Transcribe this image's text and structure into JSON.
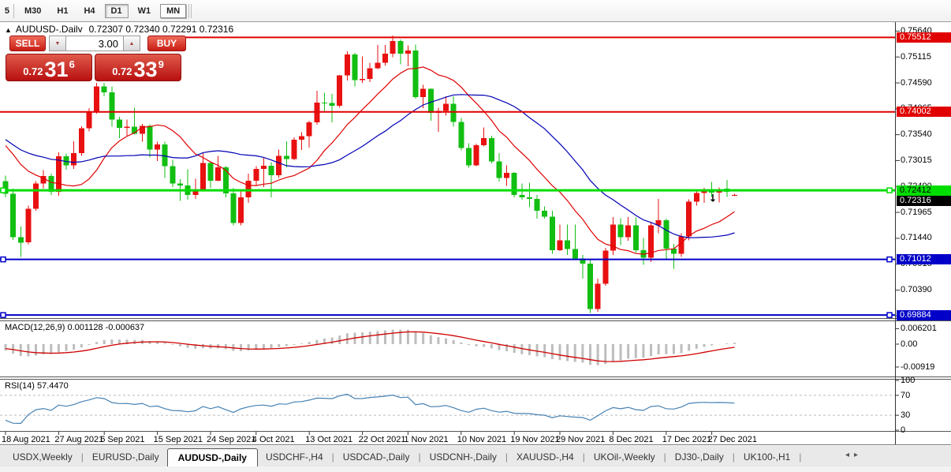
{
  "toolbar": {
    "partial_label": "5",
    "periods": [
      {
        "label": "M30",
        "style": "flat"
      },
      {
        "label": "H1",
        "style": "flat"
      },
      {
        "label": "H4",
        "style": "flat"
      },
      {
        "label": "D1",
        "style": "pressed"
      },
      {
        "label": "W1",
        "style": "flat"
      },
      {
        "label": "MN",
        "style": "raised"
      }
    ],
    "active_period": "D1"
  },
  "chart_header": {
    "collapse_icon": "▲",
    "symbol": "AUDUSD-,Daily",
    "ohlc_text": "0.72307 0.72340 0.72291 0.72316"
  },
  "trade_panel": {
    "sell_label": "SELL",
    "buy_label": "BUY",
    "volume": "3.00",
    "spinner_down": "▼",
    "spinner_up": "▲",
    "sell_price": {
      "prefix": "0.72",
      "main": "31",
      "sup": "6"
    },
    "buy_price": {
      "prefix": "0.72",
      "main": "33",
      "sup": "9"
    }
  },
  "indicators": {
    "macd": {
      "title": "MACD(12,26,9)",
      "value_main": "0.001128",
      "value_signal": "-0.000637"
    },
    "rsi": {
      "title": "RSI(14)",
      "value": "57.4470"
    }
  },
  "tabs": {
    "items": [
      "USDX,Weekly",
      "EURUSD-,Daily",
      "AUDUSD-,Daily",
      "USDCHF-,H4",
      "USDCAD-,Daily",
      "USDCNH-,Daily",
      "XAUUSD-,H4",
      "UKOil-,Weekly",
      "DJ30-,Daily",
      "UK100-,H1"
    ],
    "active": "AUDUSD-,Daily",
    "scroll_left": "◂",
    "scroll_right": "▸"
  },
  "chart_data": {
    "type": "candlestick",
    "symbol": "AUDUSD",
    "timeframe": "Daily",
    "bull_color": "#E81010",
    "bear_color": "#12BE12",
    "price_axis_ticks": [
      {
        "value": 0.7564,
        "text": "0.75640"
      },
      {
        "value": 0.75115,
        "text": "0.75115"
      },
      {
        "value": 0.7459,
        "text": "0.74590"
      },
      {
        "value": 0.74065,
        "text": "0.74065"
      },
      {
        "value": 0.7354,
        "text": "0.73540"
      },
      {
        "value": 0.73015,
        "text": "0.73015"
      },
      {
        "value": 0.7249,
        "text": "0.72490"
      },
      {
        "value": 0.71965,
        "text": "0.71965"
      },
      {
        "value": 0.7144,
        "text": "0.71440"
      },
      {
        "value": 0.70915,
        "text": "0.70915"
      },
      {
        "value": 0.7039,
        "text": "0.70390"
      },
      {
        "value": 0.69865,
        "text": "0.69865"
      }
    ],
    "h_lines": [
      {
        "price": 0.75512,
        "text": "0.75512",
        "color": "#E00000",
        "width": 2,
        "selected": false,
        "badge_fg": "#ffffff"
      },
      {
        "price": 0.74002,
        "text": "0.74002",
        "color": "#E00000",
        "width": 2,
        "selected": false,
        "badge_fg": "#ffffff"
      },
      {
        "price": 0.72412,
        "text": "0.72412",
        "color": "#00DD00",
        "width": 3,
        "selected": true,
        "badge_fg": "#000000"
      },
      {
        "price": 0.71012,
        "text": "0.71012",
        "color": "#0000C8",
        "width": 2,
        "selected": true,
        "badge_fg": "#ffffff"
      },
      {
        "price": 0.69884,
        "text": "0.69884",
        "color": "#0000C8",
        "width": 2,
        "selected": true,
        "badge_fg": "#ffffff"
      }
    ],
    "current_price": {
      "value": 0.72316,
      "text": "0.72316",
      "badge_bg": "#000000",
      "badge_fg": "#ffffff"
    },
    "date_labels": [
      {
        "i": 0,
        "text": "18 Aug 2021"
      },
      {
        "i": 7,
        "text": "27 Aug 2021"
      },
      {
        "i": 13,
        "text": "6 Sep 2021"
      },
      {
        "i": 20,
        "text": "15 Sep 2021"
      },
      {
        "i": 27,
        "text": "24 Sep 2021"
      },
      {
        "i": 33,
        "text": "4 Oct 2021"
      },
      {
        "i": 40,
        "text": "13 Oct 2021"
      },
      {
        "i": 47,
        "text": "22 Oct 2021"
      },
      {
        "i": 53,
        "text": "1 Nov 2021"
      },
      {
        "i": 60,
        "text": "10 Nov 2021"
      },
      {
        "i": 67,
        "text": "19 Nov 2021"
      },
      {
        "i": 73,
        "text": "29 Nov 2021"
      },
      {
        "i": 80,
        "text": "8 Dec 2021"
      },
      {
        "i": 87,
        "text": "17 Dec 2021"
      },
      {
        "i": 93,
        "text": "27 Dec 2021"
      }
    ],
    "start_date": "18 Aug 2021",
    "pre_history_closes": [
      0.7415,
      0.74,
      0.7395,
      0.7405,
      0.738,
      0.736,
      0.7372,
      0.7355,
      0.734,
      0.7348,
      0.7365,
      0.7352,
      0.7338,
      0.7322,
      0.7343,
      0.7358,
      0.7379,
      0.7368,
      0.7352,
      0.7345,
      0.734,
      0.7338,
      0.7336,
      0.7332,
      0.733,
      0.727
    ],
    "ohlc": [
      [
        0.726,
        0.7271,
        0.7227,
        0.7234
      ],
      [
        0.7234,
        0.7245,
        0.7141,
        0.7146
      ],
      [
        0.7146,
        0.7168,
        0.7106,
        0.7135
      ],
      [
        0.7136,
        0.721,
        0.7132,
        0.7204
      ],
      [
        0.7204,
        0.726,
        0.72,
        0.7255
      ],
      [
        0.7255,
        0.7282,
        0.7245,
        0.727
      ],
      [
        0.727,
        0.7275,
        0.7232,
        0.7238
      ],
      [
        0.7238,
        0.7318,
        0.723,
        0.731
      ],
      [
        0.731,
        0.7316,
        0.7283,
        0.7292
      ],
      [
        0.7292,
        0.7341,
        0.7285,
        0.7317
      ],
      [
        0.7317,
        0.7371,
        0.7311,
        0.7367
      ],
      [
        0.7367,
        0.7408,
        0.7361,
        0.7401
      ],
      [
        0.7401,
        0.7477,
        0.7397,
        0.7452
      ],
      [
        0.7452,
        0.7462,
        0.7432,
        0.744
      ],
      [
        0.744,
        0.7452,
        0.737,
        0.7385
      ],
      [
        0.7385,
        0.739,
        0.7347,
        0.7368
      ],
      [
        0.7368,
        0.7385,
        0.7352,
        0.737
      ],
      [
        0.737,
        0.7409,
        0.7354,
        0.7356
      ],
      [
        0.7356,
        0.7376,
        0.734,
        0.7372
      ],
      [
        0.7372,
        0.7375,
        0.7308,
        0.7324
      ],
      [
        0.7324,
        0.734,
        0.7301,
        0.7334
      ],
      [
        0.7334,
        0.734,
        0.7266,
        0.729
      ],
      [
        0.729,
        0.7303,
        0.7248,
        0.7255
      ],
      [
        0.7255,
        0.7264,
        0.722,
        0.7251
      ],
      [
        0.7251,
        0.7284,
        0.7222,
        0.7232
      ],
      [
        0.7232,
        0.7265,
        0.7224,
        0.7243
      ],
      [
        0.7243,
        0.7317,
        0.7241,
        0.7297
      ],
      [
        0.7297,
        0.7299,
        0.7246,
        0.7261
      ],
      [
        0.7261,
        0.7311,
        0.726,
        0.7288
      ],
      [
        0.7288,
        0.729,
        0.7227,
        0.7235
      ],
      [
        0.7235,
        0.7246,
        0.717,
        0.7175
      ],
      [
        0.7175,
        0.724,
        0.717,
        0.7227
      ],
      [
        0.7227,
        0.7275,
        0.7216,
        0.7261
      ],
      [
        0.7261,
        0.729,
        0.725,
        0.7285
      ],
      [
        0.7285,
        0.7307,
        0.7248,
        0.7291
      ],
      [
        0.7291,
        0.7298,
        0.7227,
        0.7272
      ],
      [
        0.7272,
        0.7324,
        0.7266,
        0.7311
      ],
      [
        0.7311,
        0.7341,
        0.7288,
        0.7305
      ],
      [
        0.7305,
        0.7349,
        0.7302,
        0.7344
      ],
      [
        0.7344,
        0.7359,
        0.7323,
        0.7351
      ],
      [
        0.7351,
        0.7382,
        0.7328,
        0.7379
      ],
      [
        0.7379,
        0.7443,
        0.7374,
        0.7419
      ],
      [
        0.7419,
        0.7439,
        0.7402,
        0.7418
      ],
      [
        0.7418,
        0.7437,
        0.7379,
        0.7413
      ],
      [
        0.7413,
        0.7475,
        0.7409,
        0.7474
      ],
      [
        0.7474,
        0.7523,
        0.7464,
        0.7517
      ],
      [
        0.7517,
        0.752,
        0.7452,
        0.7465
      ],
      [
        0.7465,
        0.7513,
        0.7459,
        0.7467
      ],
      [
        0.7467,
        0.75,
        0.7461,
        0.7489
      ],
      [
        0.7489,
        0.7536,
        0.7487,
        0.75
      ],
      [
        0.75,
        0.7536,
        0.7494,
        0.7518
      ],
      [
        0.7518,
        0.7555,
        0.7511,
        0.7544
      ],
      [
        0.7544,
        0.7547,
        0.7497,
        0.7518
      ],
      [
        0.7518,
        0.7535,
        0.7493,
        0.7525
      ],
      [
        0.7525,
        0.7537,
        0.7427,
        0.743
      ],
      [
        0.743,
        0.7455,
        0.7408,
        0.7447
      ],
      [
        0.7447,
        0.7448,
        0.7382,
        0.7398
      ],
      [
        0.7398,
        0.7409,
        0.736,
        0.7402
      ],
      [
        0.7402,
        0.7432,
        0.7393,
        0.7417
      ],
      [
        0.7417,
        0.7432,
        0.737,
        0.738
      ],
      [
        0.738,
        0.7388,
        0.7322,
        0.7327
      ],
      [
        0.7327,
        0.7337,
        0.7287,
        0.7292
      ],
      [
        0.7292,
        0.7336,
        0.729,
        0.7333
      ],
      [
        0.7333,
        0.7369,
        0.733,
        0.7347
      ],
      [
        0.7347,
        0.7352,
        0.7296,
        0.73
      ],
      [
        0.73,
        0.7317,
        0.7259,
        0.7266
      ],
      [
        0.7266,
        0.7292,
        0.725,
        0.7277
      ],
      [
        0.7277,
        0.7278,
        0.7227,
        0.7232
      ],
      [
        0.7232,
        0.7255,
        0.7222,
        0.7227
      ],
      [
        0.7227,
        0.7257,
        0.7207,
        0.7224
      ],
      [
        0.7224,
        0.7232,
        0.7184,
        0.72
      ],
      [
        0.72,
        0.7209,
        0.7184,
        0.7188
      ],
      [
        0.7188,
        0.72,
        0.7113,
        0.712
      ],
      [
        0.712,
        0.7172,
        0.7118,
        0.714
      ],
      [
        0.714,
        0.7172,
        0.711,
        0.7122
      ],
      [
        0.7122,
        0.7172,
        0.71,
        0.7103
      ],
      [
        0.7103,
        0.711,
        0.7062,
        0.7093
      ],
      [
        0.7093,
        0.7102,
        0.6993,
        0.7001
      ],
      [
        0.7001,
        0.7062,
        0.6995,
        0.7052
      ],
      [
        0.7052,
        0.7125,
        0.7048,
        0.7119
      ],
      [
        0.7119,
        0.7187,
        0.711,
        0.7172
      ],
      [
        0.7172,
        0.7185,
        0.713,
        0.7146
      ],
      [
        0.7146,
        0.7187,
        0.7139,
        0.717
      ],
      [
        0.717,
        0.7186,
        0.7115,
        0.712
      ],
      [
        0.712,
        0.7145,
        0.709,
        0.7105
      ],
      [
        0.7105,
        0.7176,
        0.7096,
        0.717
      ],
      [
        0.717,
        0.7224,
        0.7154,
        0.7181
      ],
      [
        0.7181,
        0.7184,
        0.7102,
        0.7123
      ],
      [
        0.7123,
        0.7133,
        0.7082,
        0.7113
      ],
      [
        0.7113,
        0.7154,
        0.7106,
        0.7148
      ],
      [
        0.7148,
        0.7223,
        0.714,
        0.7218
      ],
      [
        0.7218,
        0.7242,
        0.721,
        0.7236
      ],
      [
        0.7236,
        0.7246,
        0.7216,
        0.7241
      ],
      [
        0.7241,
        0.7258,
        0.7228,
        0.7237
      ],
      [
        0.7237,
        0.7247,
        0.7217,
        0.724
      ],
      [
        0.7245,
        0.7262,
        0.7228,
        0.7238
      ],
      [
        0.72307,
        0.7234,
        0.72291,
        0.72316
      ]
    ],
    "moving_averages": [
      {
        "type": "SMA",
        "period": 12,
        "color": "#E00000"
      },
      {
        "type": "SMA",
        "period": 24,
        "color": "#0000B4"
      }
    ],
    "arrow_marker": {
      "index": 93,
      "price": 0.7225,
      "glyph": "↓",
      "color": "#000000"
    },
    "macd": {
      "fast": 12,
      "slow": 26,
      "signal": 9,
      "histogram_color": "#BDBDBD",
      "signal_color": "#D00000",
      "last_main": 0.001128,
      "last_signal": -0.000637,
      "axis_labels": [
        {
          "v": 0.006201,
          "text": "0.006201"
        },
        {
          "v": 0,
          "text": "0.00"
        },
        {
          "v": -0.00919,
          "text": "-0.00919"
        }
      ]
    },
    "rsi": {
      "period": 14,
      "color": "#4682B4",
      "last_value": 57.447,
      "levels": [
        70,
        30
      ],
      "range": [
        0,
        100
      ],
      "axis_labels": [
        {
          "v": 100,
          "text": "100"
        },
        {
          "v": 70,
          "text": "70"
        },
        {
          "v": 30,
          "text": "30"
        },
        {
          "v": 0,
          "text": "0"
        }
      ]
    }
  }
}
